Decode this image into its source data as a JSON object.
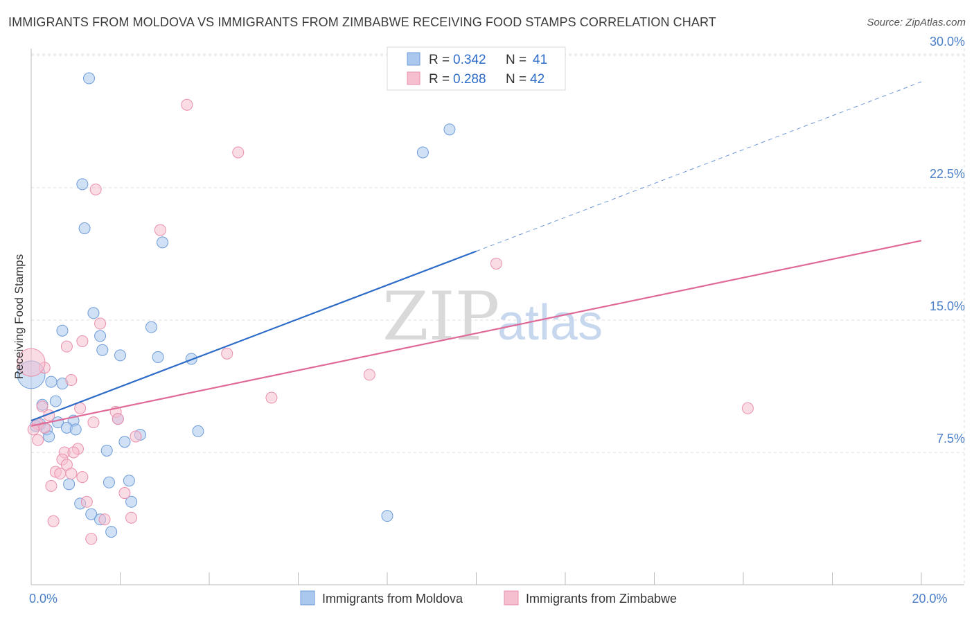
{
  "title": "IMMIGRANTS FROM MOLDOVA VS IMMIGRANTS FROM ZIMBABWE RECEIVING FOOD STAMPS CORRELATION CHART",
  "source": "Source: ZipAtlas.com",
  "watermark": {
    "zip": "ZIP",
    "atlas": "atlas"
  },
  "colors": {
    "moldova_fill": "#aac8ee",
    "moldova_stroke": "#6d9bd8",
    "moldova_line": "#2c6bc7",
    "zimbabwe_fill": "#f6bfd0",
    "zimbabwe_stroke": "#ea8fab",
    "zimbabwe_line": "#e06a97",
    "grid": "#dddddd",
    "tick_label": "#4a7fc8"
  },
  "legend": {
    "rows": [
      {
        "r_label": "R = ",
        "r_value": "0.342",
        "n_label": "N = ",
        "n_value": "41"
      },
      {
        "r_label": "R = ",
        "r_value": "0.288",
        "n_label": "N = ",
        "n_value": "42"
      }
    ]
  },
  "chart_data": {
    "type": "scatter",
    "title": "IMMIGRANTS FROM MOLDOVA VS IMMIGRANTS FROM ZIMBABWE RECEIVING FOOD STAMPS CORRELATION CHART",
    "xlabel": "",
    "ylabel": "Receiving Food Stamps",
    "xlim": [
      0,
      20
    ],
    "ylim": [
      0,
      31.5
    ],
    "x_tick_labels": [
      {
        "value": 0,
        "label": "0.0%"
      },
      {
        "value": 20,
        "label": "20.0%"
      }
    ],
    "y_tick_labels": [
      {
        "value": 7.5,
        "label": "7.5%"
      },
      {
        "value": 15,
        "label": "15.0%"
      },
      {
        "value": 22.5,
        "label": "22.5%"
      },
      {
        "value": 30,
        "label": "30.0%"
      }
    ],
    "x_minor_ticks": [
      0,
      2,
      4,
      6,
      8,
      10,
      12,
      14,
      16,
      18,
      20
    ],
    "grid": true,
    "legend_position": "top-center",
    "series": [
      {
        "name": "Immigrants from Moldova",
        "R": 0.342,
        "N": 41,
        "trend": {
          "x0": 0,
          "y0": 9.3,
          "x1": 10,
          "y1": 18.9,
          "dashed_to_x": 20,
          "dashed_to_y": 28.5
        },
        "points": [
          {
            "x": 1.3,
            "y": 28.7
          },
          {
            "x": 1.15,
            "y": 22.7
          },
          {
            "x": 1.2,
            "y": 20.2
          },
          {
            "x": 2.95,
            "y": 19.4
          },
          {
            "x": 1.4,
            "y": 15.4
          },
          {
            "x": 0.7,
            "y": 14.4
          },
          {
            "x": 2.7,
            "y": 14.6
          },
          {
            "x": 1.55,
            "y": 14.1
          },
          {
            "x": 1.6,
            "y": 13.3
          },
          {
            "x": 2.0,
            "y": 13.0
          },
          {
            "x": 2.85,
            "y": 12.9
          },
          {
            "x": 3.6,
            "y": 12.8
          },
          {
            "x": 0.0,
            "y": 11.9
          },
          {
            "x": 0.45,
            "y": 11.5
          },
          {
            "x": 0.7,
            "y": 11.4
          },
          {
            "x": 0.25,
            "y": 10.2
          },
          {
            "x": 0.55,
            "y": 10.4
          },
          {
            "x": 0.2,
            "y": 9.1
          },
          {
            "x": 0.6,
            "y": 9.2
          },
          {
            "x": 0.95,
            "y": 9.3
          },
          {
            "x": 1.95,
            "y": 9.4
          },
          {
            "x": 0.35,
            "y": 8.8
          },
          {
            "x": 0.8,
            "y": 8.9
          },
          {
            "x": 1.0,
            "y": 8.8
          },
          {
            "x": 0.4,
            "y": 8.4
          },
          {
            "x": 2.45,
            "y": 8.5
          },
          {
            "x": 3.75,
            "y": 8.7
          },
          {
            "x": 2.1,
            "y": 8.1
          },
          {
            "x": 1.7,
            "y": 7.6
          },
          {
            "x": 1.75,
            "y": 5.8
          },
          {
            "x": 0.85,
            "y": 5.7
          },
          {
            "x": 2.2,
            "y": 5.9
          },
          {
            "x": 1.1,
            "y": 4.6
          },
          {
            "x": 2.25,
            "y": 4.7
          },
          {
            "x": 1.35,
            "y": 4.0
          },
          {
            "x": 1.55,
            "y": 3.7
          },
          {
            "x": 1.8,
            "y": 3.0
          },
          {
            "x": 9.4,
            "y": 25.8
          },
          {
            "x": 8.8,
            "y": 24.5
          },
          {
            "x": 8.0,
            "y": 3.9
          },
          {
            "x": 0.1,
            "y": 9.0
          }
        ]
      },
      {
        "name": "Immigrants from Zimbabwe",
        "R": 0.288,
        "N": 42,
        "trend": {
          "x0": 0,
          "y0": 9.0,
          "x1": 20,
          "y1": 19.5
        },
        "points": [
          {
            "x": 3.5,
            "y": 27.2
          },
          {
            "x": 4.65,
            "y": 24.5
          },
          {
            "x": 1.45,
            "y": 22.4
          },
          {
            "x": 2.9,
            "y": 20.1
          },
          {
            "x": 10.45,
            "y": 18.2
          },
          {
            "x": 1.55,
            "y": 14.8
          },
          {
            "x": 1.15,
            "y": 13.8
          },
          {
            "x": 0.8,
            "y": 13.5
          },
          {
            "x": 4.4,
            "y": 13.1
          },
          {
            "x": 0.3,
            "y": 12.3
          },
          {
            "x": 0.0,
            "y": 12.6
          },
          {
            "x": 7.6,
            "y": 11.9
          },
          {
            "x": 0.9,
            "y": 11.6
          },
          {
            "x": 5.4,
            "y": 10.6
          },
          {
            "x": 16.1,
            "y": 10.0
          },
          {
            "x": 0.25,
            "y": 10.1
          },
          {
            "x": 1.1,
            "y": 10.0
          },
          {
            "x": 1.9,
            "y": 9.8
          },
          {
            "x": 0.4,
            "y": 9.6
          },
          {
            "x": 1.95,
            "y": 9.4
          },
          {
            "x": 0.15,
            "y": 9.1
          },
          {
            "x": 1.4,
            "y": 9.2
          },
          {
            "x": 0.3,
            "y": 8.9
          },
          {
            "x": 0.05,
            "y": 8.8
          },
          {
            "x": 2.35,
            "y": 8.4
          },
          {
            "x": 0.15,
            "y": 8.2
          },
          {
            "x": 1.05,
            "y": 7.7
          },
          {
            "x": 0.75,
            "y": 7.5
          },
          {
            "x": 0.95,
            "y": 7.5
          },
          {
            "x": 0.7,
            "y": 7.1
          },
          {
            "x": 0.8,
            "y": 6.8
          },
          {
            "x": 0.55,
            "y": 6.4
          },
          {
            "x": 0.65,
            "y": 6.3
          },
          {
            "x": 0.9,
            "y": 6.3
          },
          {
            "x": 1.15,
            "y": 6.1
          },
          {
            "x": 0.45,
            "y": 5.6
          },
          {
            "x": 2.1,
            "y": 5.2
          },
          {
            "x": 1.25,
            "y": 4.7
          },
          {
            "x": 0.5,
            "y": 3.6
          },
          {
            "x": 1.65,
            "y": 3.7
          },
          {
            "x": 2.25,
            "y": 3.8
          },
          {
            "x": 1.35,
            "y": 2.6
          }
        ]
      }
    ]
  }
}
